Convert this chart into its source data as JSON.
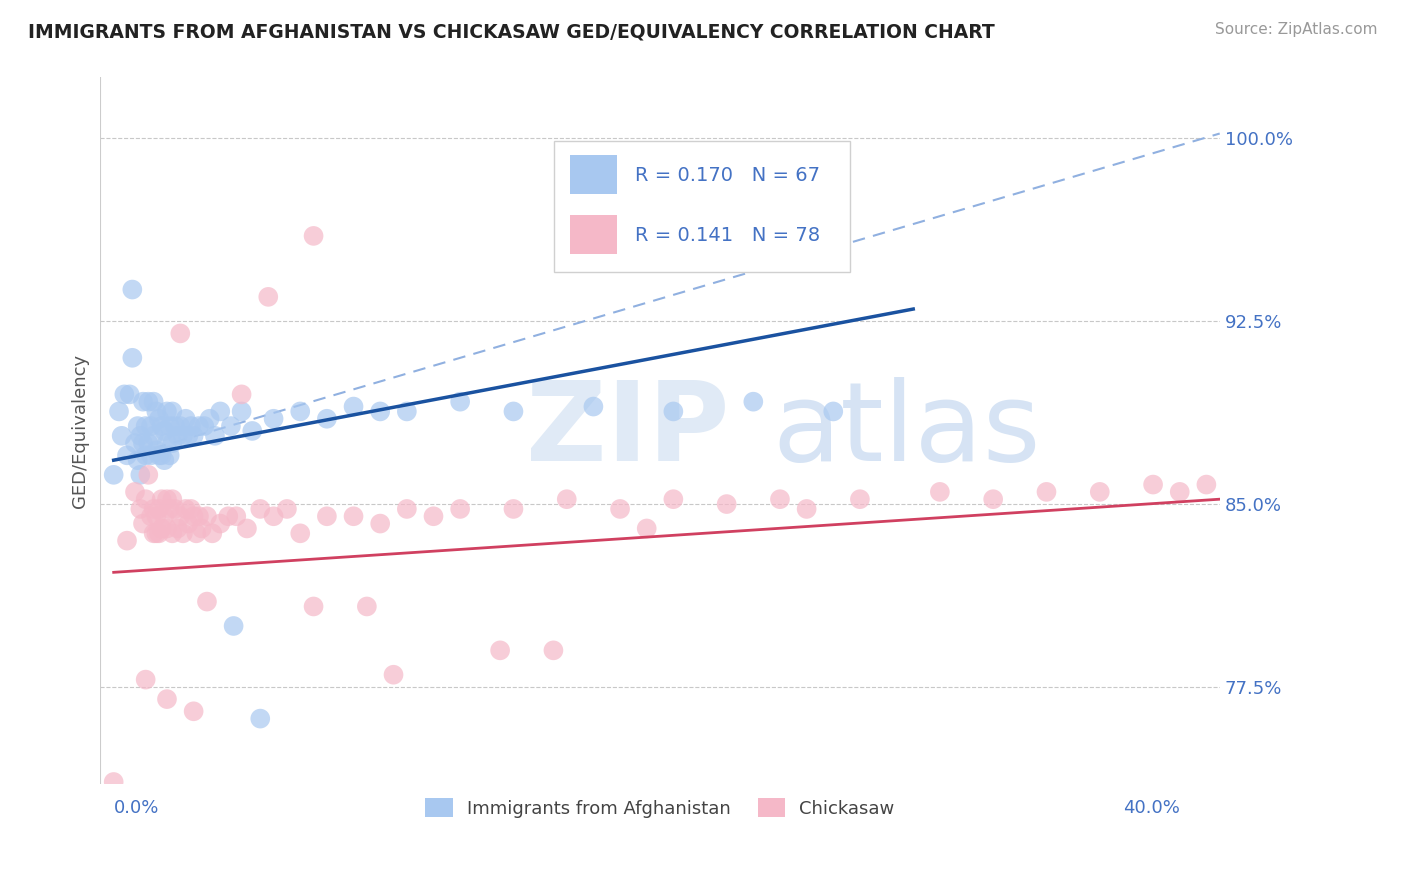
{
  "title": "IMMIGRANTS FROM AFGHANISTAN VS CHICKASAW GED/EQUIVALENCY CORRELATION CHART",
  "source": "Source: ZipAtlas.com",
  "ylabel": "GED/Equivalency",
  "ylim": [
    0.735,
    1.025
  ],
  "xlim": [
    -0.005,
    0.415
  ],
  "blue_R": 0.17,
  "blue_N": 67,
  "pink_R": 0.141,
  "pink_N": 78,
  "blue_color": "#a8c8f0",
  "pink_color": "#f5b8c8",
  "blue_line_color": "#1a52a0",
  "pink_line_color": "#d04060",
  "dashed_line_color": "#90b0e0",
  "legend_label_blue": "Immigrants from Afghanistan",
  "legend_label_pink": "Chickasaw",
  "axis_label_color": "#4472c4",
  "ytick_positions": [
    0.775,
    0.85,
    0.925,
    1.0
  ],
  "ytick_labels": [
    "77.5%",
    "85.0%",
    "92.5%",
    "100.0%"
  ],
  "blue_line_x": [
    0.0,
    0.3
  ],
  "blue_line_y": [
    0.868,
    0.93
  ],
  "pink_line_x": [
    0.0,
    0.415
  ],
  "pink_line_y": [
    0.822,
    0.852
  ],
  "dash_line_x": [
    0.0,
    0.415
  ],
  "dash_line_y": [
    0.868,
    1.002
  ],
  "blue_scatter_x": [
    0.0,
    0.002,
    0.003,
    0.004,
    0.005,
    0.006,
    0.007,
    0.007,
    0.008,
    0.009,
    0.009,
    0.01,
    0.01,
    0.011,
    0.011,
    0.012,
    0.012,
    0.013,
    0.013,
    0.014,
    0.014,
    0.015,
    0.015,
    0.016,
    0.016,
    0.017,
    0.017,
    0.018,
    0.018,
    0.019,
    0.019,
    0.02,
    0.02,
    0.021,
    0.021,
    0.022,
    0.022,
    0.023,
    0.024,
    0.025,
    0.026,
    0.027,
    0.028,
    0.029,
    0.03,
    0.032,
    0.034,
    0.036,
    0.038,
    0.04,
    0.044,
    0.048,
    0.052,
    0.06,
    0.07,
    0.08,
    0.09,
    0.1,
    0.11,
    0.13,
    0.15,
    0.18,
    0.21,
    0.24,
    0.27,
    0.045,
    0.055
  ],
  "blue_scatter_y": [
    0.862,
    0.888,
    0.878,
    0.895,
    0.87,
    0.895,
    0.938,
    0.91,
    0.875,
    0.882,
    0.868,
    0.878,
    0.862,
    0.892,
    0.875,
    0.882,
    0.87,
    0.892,
    0.875,
    0.882,
    0.87,
    0.892,
    0.878,
    0.888,
    0.872,
    0.885,
    0.87,
    0.882,
    0.87,
    0.88,
    0.868,
    0.888,
    0.875,
    0.882,
    0.87,
    0.888,
    0.875,
    0.882,
    0.878,
    0.882,
    0.878,
    0.885,
    0.878,
    0.882,
    0.878,
    0.882,
    0.882,
    0.885,
    0.878,
    0.888,
    0.882,
    0.888,
    0.88,
    0.885,
    0.888,
    0.885,
    0.89,
    0.888,
    0.888,
    0.892,
    0.888,
    0.89,
    0.888,
    0.892,
    0.888,
    0.8,
    0.762
  ],
  "pink_scatter_x": [
    0.0,
    0.005,
    0.008,
    0.01,
    0.011,
    0.012,
    0.013,
    0.014,
    0.015,
    0.015,
    0.016,
    0.016,
    0.017,
    0.017,
    0.018,
    0.018,
    0.019,
    0.02,
    0.02,
    0.021,
    0.022,
    0.022,
    0.023,
    0.024,
    0.025,
    0.026,
    0.027,
    0.028,
    0.029,
    0.03,
    0.031,
    0.032,
    0.033,
    0.035,
    0.037,
    0.04,
    0.043,
    0.046,
    0.05,
    0.055,
    0.06,
    0.065,
    0.07,
    0.08,
    0.09,
    0.1,
    0.11,
    0.12,
    0.13,
    0.15,
    0.17,
    0.19,
    0.21,
    0.23,
    0.25,
    0.28,
    0.31,
    0.33,
    0.35,
    0.37,
    0.39,
    0.4,
    0.41,
    0.025,
    0.035,
    0.048,
    0.058,
    0.075,
    0.095,
    0.105,
    0.145,
    0.165,
    0.012,
    0.02,
    0.03,
    0.2,
    0.26,
    0.075
  ],
  "pink_scatter_y": [
    0.736,
    0.835,
    0.855,
    0.848,
    0.842,
    0.852,
    0.862,
    0.845,
    0.848,
    0.838,
    0.845,
    0.838,
    0.848,
    0.838,
    0.852,
    0.84,
    0.845,
    0.852,
    0.84,
    0.848,
    0.852,
    0.838,
    0.848,
    0.84,
    0.845,
    0.838,
    0.848,
    0.842,
    0.848,
    0.845,
    0.838,
    0.845,
    0.84,
    0.845,
    0.838,
    0.842,
    0.845,
    0.845,
    0.84,
    0.848,
    0.845,
    0.848,
    0.838,
    0.845,
    0.845,
    0.842,
    0.848,
    0.845,
    0.848,
    0.848,
    0.852,
    0.848,
    0.852,
    0.85,
    0.852,
    0.852,
    0.855,
    0.852,
    0.855,
    0.855,
    0.858,
    0.855,
    0.858,
    0.92,
    0.81,
    0.895,
    0.935,
    0.808,
    0.808,
    0.78,
    0.79,
    0.79,
    0.778,
    0.77,
    0.765,
    0.84,
    0.848,
    0.96
  ]
}
